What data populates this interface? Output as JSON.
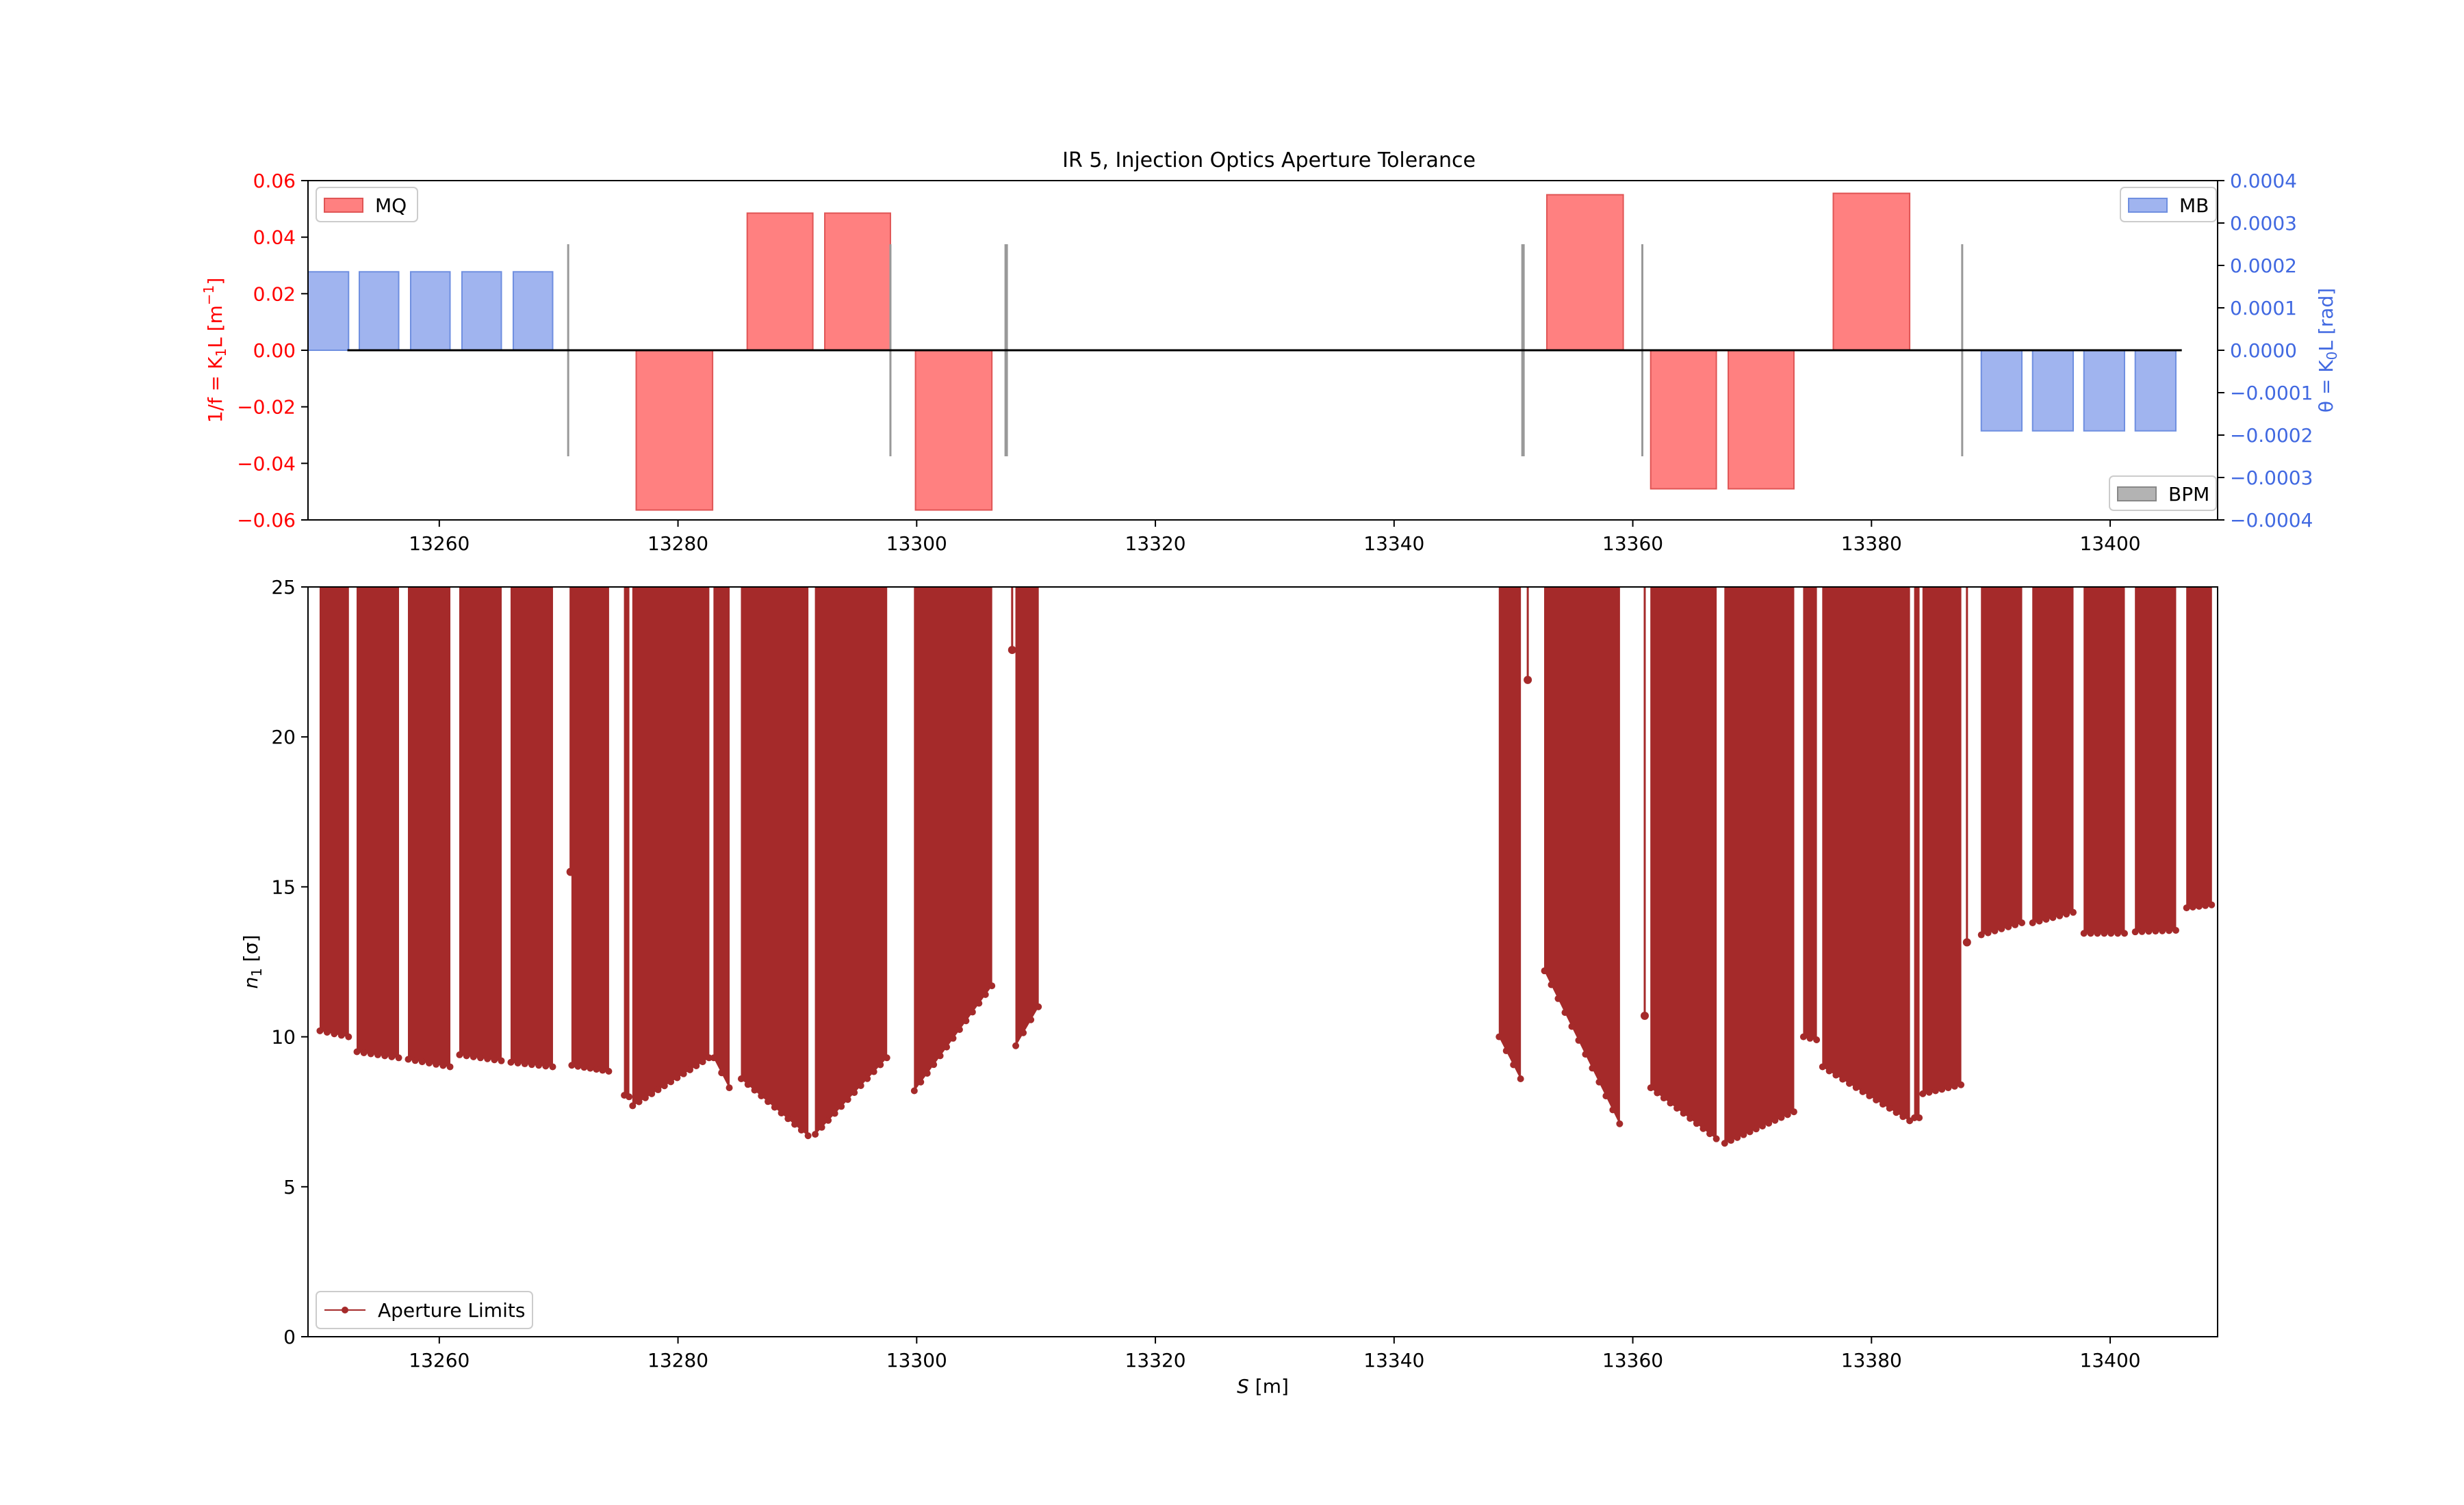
{
  "chart_data": [
    {
      "type": "bar",
      "title": "IR 5, Injection Optics Aperture Tolerance",
      "xlim": [
        13249,
        13409
      ],
      "ylim_left": [
        -0.06,
        0.06
      ],
      "ylim_right": [
        -0.0004,
        0.0004
      ],
      "ylabel_left_main": "1/f = K",
      "ylabel_left_sub": "1",
      "ylabel_left_tail": "L [m",
      "ylabel_left_sup": "−1",
      "ylabel_left_close": "]",
      "ylabel_right_main": "θ = K",
      "ylabel_right_sub": "0",
      "ylabel_right_tail": "L [rad]",
      "xticks": [
        13260,
        13280,
        13300,
        13320,
        13340,
        13360,
        13380,
        13400
      ],
      "yticks_left": [
        "−0.06",
        "−0.04",
        "−0.02",
        "0.00",
        "0.02",
        "0.04",
        "0.06"
      ],
      "yticks_right": [
        "−0.0004",
        "−0.0003",
        "−0.0002",
        "−0.0001",
        "0.0000",
        "0.0001",
        "0.0002",
        "0.0003",
        "0.0004"
      ],
      "grid": false,
      "legend": [
        {
          "label": "MQ",
          "position": "top-left"
        },
        {
          "label": "MB",
          "position": "top-right"
        },
        {
          "label": "BPM",
          "position": "bottom-right"
        }
      ],
      "series": [
        {
          "name": "MQ",
          "axis": "left",
          "bars": [
            {
              "x0": 13276.5,
              "x1": 13282.9,
              "value": -0.0565
            },
            {
              "x0": 13285.8,
              "x1": 13291.3,
              "value": 0.0485
            },
            {
              "x0": 13292.3,
              "x1": 13297.8,
              "value": 0.0485
            },
            {
              "x0": 13299.9,
              "x1": 13306.3,
              "value": -0.0565
            },
            {
              "x0": 13352.8,
              "x1": 13359.2,
              "value": 0.055
            },
            {
              "x0": 13361.5,
              "x1": 13367.0,
              "value": -0.049
            },
            {
              "x0": 13368.0,
              "x1": 13373.5,
              "value": -0.049
            },
            {
              "x0": 13376.8,
              "x1": 13383.2,
              "value": 0.0555
            }
          ]
        },
        {
          "name": "MB",
          "axis": "right",
          "bars": [
            {
              "x0": 13249.0,
              "x1": 13252.4,
              "value": 0.000185
            },
            {
              "x0": 13253.3,
              "x1": 13256.6,
              "value": 0.000185
            },
            {
              "x0": 13257.6,
              "x1": 13260.9,
              "value": 0.000185
            },
            {
              "x0": 13261.9,
              "x1": 13265.2,
              "value": 0.000185
            },
            {
              "x0": 13266.2,
              "x1": 13269.5,
              "value": 0.000185
            },
            {
              "x0": 13389.2,
              "x1": 13392.6,
              "value": -0.00019
            },
            {
              "x0": 13393.5,
              "x1": 13396.9,
              "value": -0.00019
            },
            {
              "x0": 13397.8,
              "x1": 13401.2,
              "value": -0.00019
            },
            {
              "x0": 13402.1,
              "x1": 13405.5,
              "value": -0.00019
            }
          ]
        },
        {
          "name": "BPM",
          "axis": "left",
          "markers": [
            {
              "x": 13270.8,
              "low": -0.0375,
              "high": 0.0375
            },
            {
              "x": 13297.8,
              "low": -0.0375,
              "high": 0.0375
            },
            {
              "x": 13307.5,
              "low": -0.0375,
              "high": 0.0375
            },
            {
              "x": 13350.8,
              "low": -0.0375,
              "high": 0.0375
            },
            {
              "x": 13360.8,
              "low": -0.0375,
              "high": 0.0375
            },
            {
              "x": 13387.6,
              "low": -0.0375,
              "high": 0.0375
            }
          ]
        }
      ],
      "reference_line": {
        "from": 13252.3,
        "to": 13406.0,
        "value": 0
      }
    },
    {
      "type": "area",
      "xlabel_main": "S",
      "xlabel_unit": " [m]",
      "ylabel_main": "n",
      "ylabel_sub": "1",
      "ylabel_unit": " [σ]",
      "xlim": [
        13249,
        13409
      ],
      "ylim": [
        0,
        25
      ],
      "xticks": [
        13260,
        13280,
        13300,
        13320,
        13340,
        13360,
        13380,
        13400
      ],
      "yticks": [
        0,
        5,
        10,
        15,
        20,
        25
      ],
      "grid": false,
      "legend_position": "bottom-left",
      "series": [
        {
          "name": "Aperture Limits",
          "segments": [
            {
              "x0": 13250.0,
              "x1": 13252.4,
              "y0": 10.2,
              "y1": 10.0
            },
            {
              "x0": 13253.1,
              "x1": 13256.6,
              "y0": 9.5,
              "y1": 9.3
            },
            {
              "x0": 13257.4,
              "x1": 13260.9,
              "y0": 9.25,
              "y1": 9.0
            },
            {
              "x0": 13261.7,
              "x1": 13265.2,
              "y0": 9.4,
              "y1": 9.2
            },
            {
              "x0": 13266.0,
              "x1": 13269.5,
              "y0": 9.15,
              "y1": 9.0
            },
            {
              "x0": 13271.1,
              "x1": 13274.2,
              "y0": 9.05,
              "y1": 8.85
            },
            {
              "x0": 13275.5,
              "x1": 13275.9,
              "y0": 8.05,
              "y1": 8.0
            },
            {
              "x0": 13276.2,
              "x1": 13282.6,
              "y0": 7.7,
              "y1": 9.3
            },
            {
              "x0": 13283.0,
              "x1": 13284.3,
              "y0": 9.3,
              "y1": 8.3
            },
            {
              "x0": 13285.3,
              "x1": 13290.9,
              "y0": 8.6,
              "y1": 6.7
            },
            {
              "x0": 13291.5,
              "x1": 13297.5,
              "y0": 6.75,
              "y1": 9.3
            },
            {
              "x0": 13299.8,
              "x1": 13306.3,
              "y0": 8.2,
              "y1": 11.7
            },
            {
              "x0": 13308.3,
              "x1": 13310.2,
              "y0": 9.7,
              "y1": 11.0
            },
            {
              "x0": 13348.8,
              "x1": 13350.6,
              "y0": 10.0,
              "y1": 8.6
            },
            {
              "x0": 13352.6,
              "x1": 13358.9,
              "y0": 12.2,
              "y1": 7.1
            },
            {
              "x0": 13361.5,
              "x1": 13367.0,
              "y0": 8.3,
              "y1": 6.6
            },
            {
              "x0": 13367.7,
              "x1": 13373.5,
              "y0": 6.45,
              "y1": 7.5
            },
            {
              "x0": 13374.3,
              "x1": 13375.4,
              "y0": 10.0,
              "y1": 9.9
            },
            {
              "x0": 13375.9,
              "x1": 13383.2,
              "y0": 9.0,
              "y1": 7.2
            },
            {
              "x0": 13383.6,
              "x1": 13384.0,
              "y0": 7.3,
              "y1": 7.3
            },
            {
              "x0": 13384.3,
              "x1": 13387.5,
              "y0": 8.1,
              "y1": 8.4
            },
            {
              "x0": 13389.2,
              "x1": 13392.6,
              "y0": 13.4,
              "y1": 13.8
            },
            {
              "x0": 13393.5,
              "x1": 13396.9,
              "y0": 13.8,
              "y1": 14.15
            },
            {
              "x0": 13397.8,
              "x1": 13401.2,
              "y0": 13.45,
              "y1": 13.45
            },
            {
              "x0": 13402.1,
              "x1": 13405.5,
              "y0": 13.5,
              "y1": 13.55
            },
            {
              "x0": 13406.4,
              "x1": 13408.5,
              "y0": 14.3,
              "y1": 14.4
            }
          ],
          "spikes": [
            {
              "x": 13271.0,
              "y": 15.5
            },
            {
              "x": 13308.0,
              "y": 22.9
            },
            {
              "x": 13351.2,
              "y": 21.9
            },
            {
              "x": 13361.0,
              "y": 10.7
            },
            {
              "x": 13388.0,
              "y": 13.15
            }
          ]
        }
      ]
    }
  ]
}
